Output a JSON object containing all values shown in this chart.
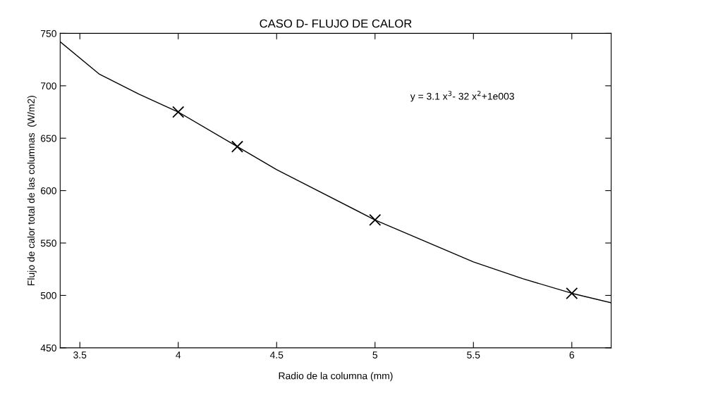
{
  "chart_data": {
    "type": "line",
    "title": "CASO D- FLUJO DE CALOR",
    "xlabel": "Radio de la columna (mm)",
    "ylabel": "Flujo de calor total de las columnas  (W/m2)",
    "series": [
      {
        "color": "#000000",
        "x": [
          3.4,
          3.6,
          3.8,
          4,
          4.3,
          4.5,
          5,
          5.5,
          5.75,
          6,
          6.2
        ],
        "values": [
          742,
          711,
          692,
          675,
          642,
          620,
          572,
          532,
          516,
          502,
          493
        ],
        "marker": "none",
        "line_style": "solid"
      },
      {
        "type": "scatter",
        "color": "#000000",
        "x": [
          4,
          4.3,
          5,
          6
        ],
        "values": [
          675,
          642,
          572,
          502
        ],
        "marker": "cross"
      }
    ],
    "annotations": [
      "y = 3.1 x$^{3}$- 32 x$^{2}$+1e003"
    ],
    "xlim": [
      3.4,
      6.2
    ],
    "ylim": [
      450,
      750
    ],
    "xticks": [
      3.5,
      4,
      4.5,
      5,
      5.5,
      6
    ],
    "yticks": [
      450,
      500,
      550,
      600,
      650,
      700,
      750
    ],
    "grid": false
  }
}
